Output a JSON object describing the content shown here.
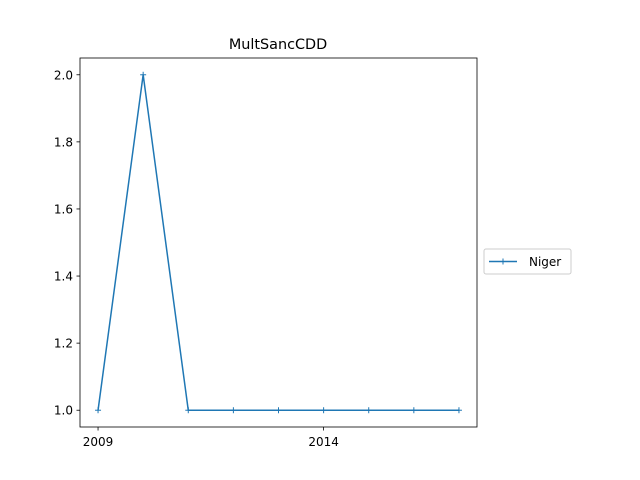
{
  "chart_data": {
    "type": "line",
    "title": "MultSancCDD",
    "xlabel": "",
    "ylabel": "",
    "x": [
      2009,
      2010,
      2011,
      2012,
      2013,
      2014,
      2015,
      2016,
      2017
    ],
    "series": [
      {
        "name": "Niger",
        "values": [
          1.0,
          2.0,
          1.0,
          1.0,
          1.0,
          1.0,
          1.0,
          1.0,
          1.0
        ],
        "color": "#1f77b4",
        "marker": "+"
      }
    ],
    "xticks": [
      2009,
      2014
    ],
    "yticks": [
      1.0,
      1.2,
      1.4,
      1.6,
      1.8,
      2.0
    ],
    "ytick_labels": [
      "1.0",
      "1.2",
      "1.4",
      "1.6",
      "1.8",
      "2.0"
    ],
    "xlim": [
      2008.6,
      2017.4
    ],
    "ylim": [
      0.95,
      2.05
    ],
    "grid": false,
    "legend_position": "outside-right"
  }
}
